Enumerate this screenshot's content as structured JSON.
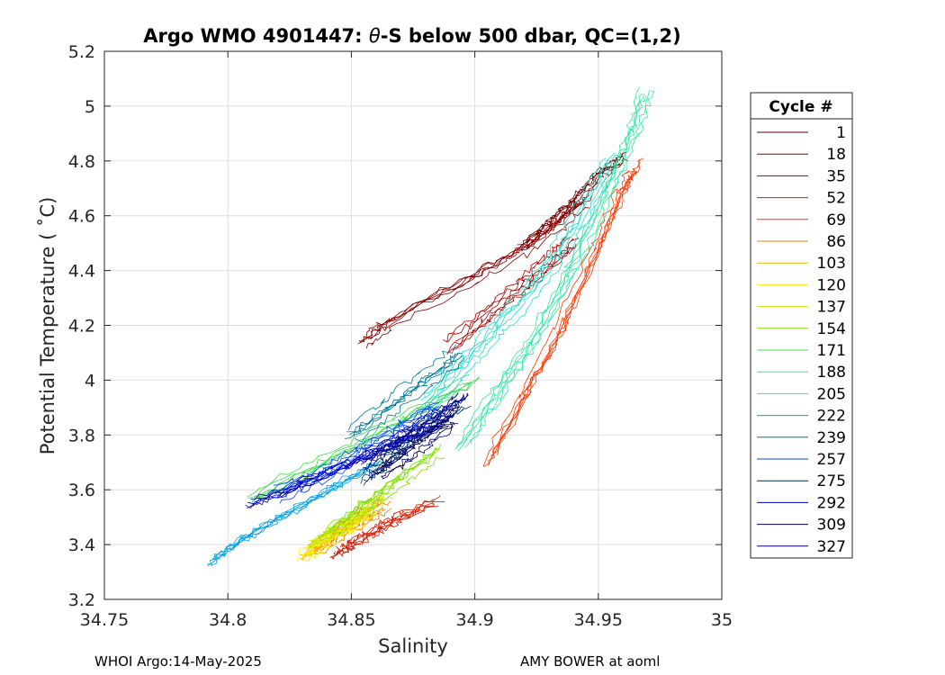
{
  "chart_data": {
    "type": "line",
    "title_prefix": "Argo WMO 4901447: ",
    "title_theta": "θ",
    "title_suffix": "-S below 500 dbar,  QC=(1,2)",
    "xlabel": "Salinity",
    "ylabel": "Potential Temperature ( ˚C)",
    "xlim": [
      34.75,
      35
    ],
    "ylim": [
      3.2,
      5.2
    ],
    "x_ticks": [
      34.75,
      34.8,
      34.85,
      34.9,
      34.95,
      35
    ],
    "x_tick_labels": [
      "34.75",
      "34.8",
      "34.85",
      "34.9",
      "34.95",
      "35"
    ],
    "y_ticks": [
      3.2,
      3.4,
      3.6,
      3.8,
      4,
      4.2,
      4.4,
      4.6,
      4.8,
      5,
      5.2
    ],
    "y_tick_labels": [
      "3.2",
      "3.4",
      "3.6",
      "3.8",
      "4",
      "4.2",
      "4.4",
      "4.6",
      "4.8",
      "5",
      "5.2"
    ],
    "grid": true,
    "legend_title": "Cycle #",
    "legend_position": "outside-right",
    "series": [
      {
        "name": "1",
        "color": "#6e0000",
        "points": [
          [
            34.92,
            4.5
          ],
          [
            34.93,
            4.58
          ],
          [
            34.94,
            4.66
          ],
          [
            34.95,
            4.76
          ],
          [
            34.96,
            4.82
          ]
        ]
      },
      {
        "name": "18",
        "color": "#8c0000",
        "points": [
          [
            34.855,
            4.13
          ],
          [
            34.865,
            4.2
          ],
          [
            34.9,
            4.37
          ],
          [
            34.92,
            4.47
          ],
          [
            34.935,
            4.57
          ],
          [
            34.945,
            4.65
          ]
        ]
      },
      {
        "name": "35",
        "color": "#b00000",
        "points": [
          [
            34.89,
            4.12
          ],
          [
            34.905,
            4.23
          ],
          [
            34.92,
            4.34
          ],
          [
            34.93,
            4.42
          ],
          [
            34.94,
            4.5
          ]
        ]
      },
      {
        "name": "52",
        "color": "#d41800",
        "points": [
          [
            34.845,
            3.37
          ],
          [
            34.85,
            3.4
          ],
          [
            34.86,
            3.45
          ],
          [
            34.87,
            3.5
          ],
          [
            34.885,
            3.56
          ]
        ]
      },
      {
        "name": "69",
        "color": "#ff3800",
        "points": [
          [
            34.905,
            3.7
          ],
          [
            34.92,
            3.95
          ],
          [
            34.935,
            4.2
          ],
          [
            34.95,
            4.5
          ],
          [
            34.96,
            4.7
          ],
          [
            34.965,
            4.78
          ]
        ]
      },
      {
        "name": "86",
        "color": "#e87a00",
        "points": [
          [
            34.835,
            3.38
          ],
          [
            34.845,
            3.44
          ],
          [
            34.855,
            3.5
          ],
          [
            34.865,
            3.55
          ]
        ]
      },
      {
        "name": "103",
        "color": "#f0b000",
        "points": [
          [
            34.832,
            3.37
          ],
          [
            34.84,
            3.42
          ],
          [
            34.85,
            3.48
          ],
          [
            34.86,
            3.55
          ]
        ]
      },
      {
        "name": "120",
        "color": "#ffee00",
        "points": [
          [
            34.83,
            3.36
          ],
          [
            34.838,
            3.41
          ],
          [
            34.848,
            3.46
          ],
          [
            34.858,
            3.53
          ]
        ]
      },
      {
        "name": "137",
        "color": "#c8f000",
        "points": [
          [
            34.835,
            3.4
          ],
          [
            34.845,
            3.46
          ],
          [
            34.855,
            3.51
          ],
          [
            34.865,
            3.58
          ]
        ]
      },
      {
        "name": "154",
        "color": "#7fe000",
        "points": [
          [
            34.84,
            3.45
          ],
          [
            34.855,
            3.55
          ],
          [
            34.87,
            3.65
          ],
          [
            34.885,
            3.75
          ]
        ]
      },
      {
        "name": "171",
        "color": "#3cdc50",
        "points": [
          [
            34.81,
            3.57
          ],
          [
            34.84,
            3.7
          ],
          [
            34.87,
            3.85
          ],
          [
            34.9,
            4.0
          ]
        ]
      },
      {
        "name": "188",
        "color": "#2ae8a0",
        "points": [
          [
            34.895,
            3.75
          ],
          [
            34.91,
            3.95
          ],
          [
            34.925,
            4.15
          ],
          [
            34.94,
            4.4
          ],
          [
            34.955,
            4.7
          ],
          [
            34.965,
            4.9
          ],
          [
            34.97,
            5.05
          ]
        ]
      },
      {
        "name": "205",
        "color": "#20e0d0",
        "points": [
          [
            34.88,
            3.9
          ],
          [
            34.895,
            4.05
          ],
          [
            34.91,
            4.2
          ],
          [
            34.925,
            4.35
          ],
          [
            34.94,
            4.55
          ],
          [
            34.955,
            4.8
          ]
        ]
      },
      {
        "name": "222",
        "color": "#00a0e8",
        "points": [
          [
            34.793,
            3.34
          ],
          [
            34.805,
            3.42
          ],
          [
            34.82,
            3.5
          ],
          [
            34.84,
            3.6
          ],
          [
            34.86,
            3.7
          ]
        ]
      },
      {
        "name": "239",
        "color": "#00789a",
        "points": [
          [
            34.85,
            3.8
          ],
          [
            34.865,
            3.9
          ],
          [
            34.88,
            4.0
          ],
          [
            34.895,
            4.1
          ]
        ]
      },
      {
        "name": "257",
        "color": "#0040ff",
        "points": [
          [
            34.82,
            3.58
          ],
          [
            34.84,
            3.66
          ],
          [
            34.855,
            3.74
          ],
          [
            34.87,
            3.82
          ],
          [
            34.885,
            3.9
          ]
        ]
      },
      {
        "name": "275",
        "color": "#002a6a",
        "points": [
          [
            34.855,
            3.65
          ],
          [
            34.865,
            3.72
          ],
          [
            34.875,
            3.8
          ],
          [
            34.885,
            3.86
          ],
          [
            34.895,
            3.92
          ]
        ]
      },
      {
        "name": "292",
        "color": "#0000c0",
        "points": [
          [
            34.81,
            3.55
          ],
          [
            34.83,
            3.62
          ],
          [
            34.85,
            3.7
          ],
          [
            34.87,
            3.78
          ],
          [
            34.89,
            3.85
          ]
        ]
      },
      {
        "name": "309",
        "color": "#000060",
        "points": [
          [
            34.86,
            3.66
          ],
          [
            34.87,
            3.72
          ],
          [
            34.88,
            3.79
          ],
          [
            34.89,
            3.86
          ]
        ]
      },
      {
        "name": "327",
        "color": "#00008c",
        "points": [
          [
            34.855,
            3.7
          ],
          [
            34.865,
            3.76
          ],
          [
            34.875,
            3.81
          ],
          [
            34.885,
            3.87
          ],
          [
            34.895,
            3.94
          ]
        ]
      }
    ]
  },
  "footer": {
    "left": "WHOI Argo:14-May-2025",
    "right": "AMY BOWER at aoml"
  }
}
